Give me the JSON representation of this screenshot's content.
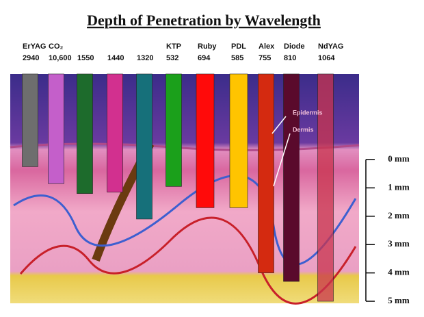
{
  "title": "Depth of Penetration by Wavelength",
  "lasers": [
    {
      "name": "ErYAG",
      "wavelength": "2940",
      "color": "#6e6e6e",
      "depth_mm": 0.25
    },
    {
      "name": "CO₂",
      "wavelength": "10,600",
      "color": "#c45fca",
      "depth_mm": 0.85
    },
    {
      "name": "",
      "wavelength": "1550",
      "color": "#1d6b2c",
      "depth_mm": 1.2
    },
    {
      "name": "",
      "wavelength": "1440",
      "color": "#d2308f",
      "depth_mm": 1.15
    },
    {
      "name": "",
      "wavelength": "1320",
      "color": "#16707a",
      "depth_mm": 2.1
    },
    {
      "name": "KTP",
      "wavelength": "532",
      "color": "#1ba01b",
      "depth_mm": 0.95
    },
    {
      "name": "Ruby",
      "wavelength": "694",
      "color": "#ff0a0a",
      "depth_mm": 1.7
    },
    {
      "name": "PDL",
      "wavelength": "585",
      "color": "#ffc400",
      "depth_mm": 1.7
    },
    {
      "name": "Alex",
      "wavelength": "755",
      "color": "#d42a10",
      "depth_mm": 4
    },
    {
      "name": "Diode",
      "wavelength": "810",
      "color": "#5a0a2c",
      "depth_mm": 4.3
    },
    {
      "name": "NdYAG",
      "wavelength": "1064",
      "color": "#c8344e",
      "depth_mm": 5
    }
  ],
  "layers": [
    "Epidermis",
    "Dermis"
  ],
  "scale": [
    {
      "value": 0,
      "label": "0 mm"
    },
    {
      "value": 1,
      "label": "1 mm"
    },
    {
      "value": 2,
      "label": "2 mm"
    },
    {
      "value": 3,
      "label": "3 mm"
    },
    {
      "value": 4,
      "label": "4 mm"
    },
    {
      "value": 5,
      "label": "5 mm"
    }
  ]
}
